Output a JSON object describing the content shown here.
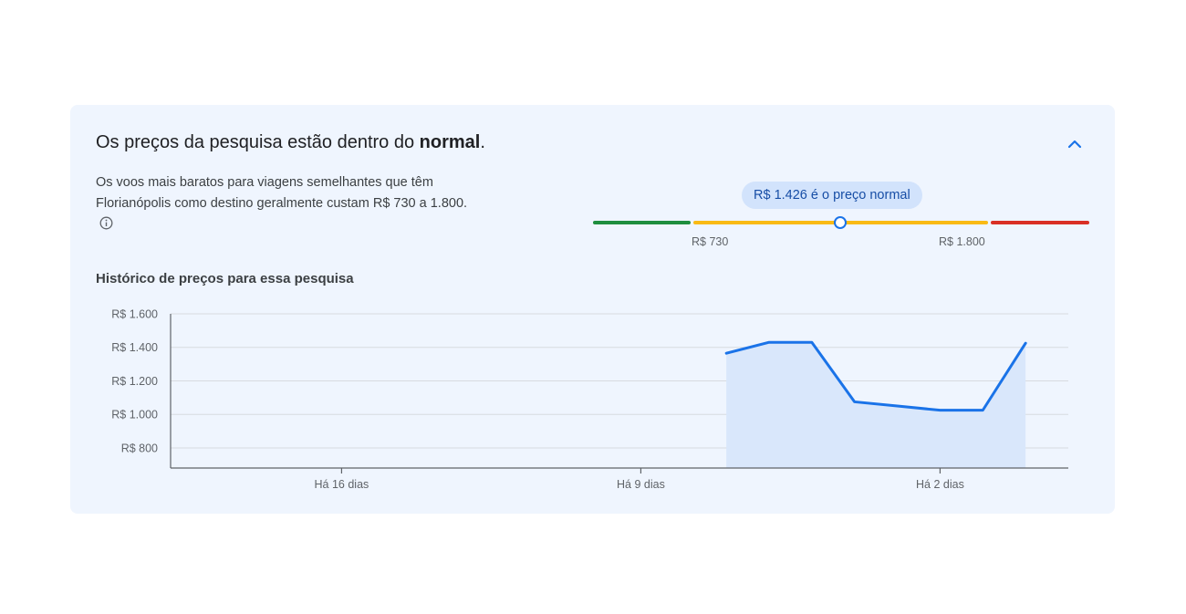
{
  "summary": {
    "heading_prefix": "Os preços da pesquisa estão dentro do ",
    "heading_emphasis": "normal",
    "heading_suffix": ".",
    "description": "Os voos mais baratos para viagens semelhantes que têm Florianópolis como destino geralmente custam R$ 730 a 1.800."
  },
  "price_range": {
    "tooltip": "R$ 1.426 é o preço normal",
    "low_label": "R$ 730",
    "high_label": "R$ 1.800",
    "current_value": 1426,
    "colors": {
      "low": "#1e8e3e",
      "typical": "#f9ba15",
      "high": "#d93025",
      "marker": "#1a73e8"
    }
  },
  "history": {
    "title": "Histórico de preços para essa pesquisa"
  },
  "chart_data": {
    "type": "area",
    "title": "Histórico de preços para essa pesquisa",
    "x_tick_labels": [
      "Há 16 dias",
      "Há 9 dias",
      "Há 2 dias"
    ],
    "y_tick_labels": [
      "R$ 1.600",
      "R$ 1.400",
      "R$ 1.200",
      "R$ 1.000",
      "R$ 800"
    ],
    "x_range_days_ago": [
      20,
      -1
    ],
    "ylim": [
      680,
      1600
    ],
    "y_ticks": [
      1600,
      1400,
      1200,
      1000,
      800
    ],
    "x_ticks_days_ago": [
      16,
      9,
      2
    ],
    "series": [
      {
        "days_ago": [
          7,
          6,
          5,
          4,
          3,
          2,
          1,
          0
        ],
        "values": [
          1365,
          1430,
          1430,
          1075,
          1050,
          1025,
          1025,
          1425
        ]
      }
    ],
    "grid": true,
    "line_color": "#1a73e8",
    "fill_color": "#d9e7fb"
  }
}
